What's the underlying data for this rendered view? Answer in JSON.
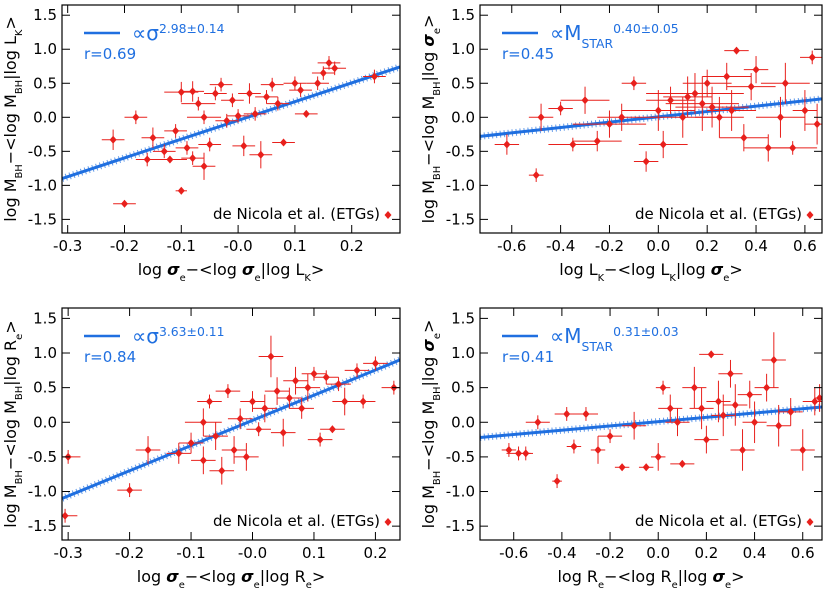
{
  "chart_data": [
    {
      "type": "scatter",
      "ylabel": [
        {
          "t": "log M"
        },
        {
          "t": "BH",
          "sub": true
        },
        {
          "t": "−<log M"
        },
        {
          "t": "BH",
          "sub": true
        },
        {
          "t": "|log L"
        },
        {
          "t": "K",
          "sub": true
        },
        {
          "t": ">"
        }
      ],
      "xlabel": [
        {
          "t": "log "
        },
        {
          "t": "σ",
          "bold": true
        },
        {
          "t": "e",
          "sub": true
        },
        {
          "t": "−<log "
        },
        {
          "t": "σ",
          "bold": true
        },
        {
          "t": "e",
          "sub": true
        },
        {
          "t": "|log L"
        },
        {
          "t": "K",
          "sub": true
        },
        {
          "t": ">"
        }
      ],
      "xlim": [
        -0.31,
        0.285
      ],
      "ylim": [
        -1.7,
        1.65
      ],
      "xticks": [
        -0.3,
        -0.2,
        -0.1,
        {
          "value": 0,
          "label": "-0.0"
        },
        0.1,
        0.2
      ],
      "yticks": [
        -1.5,
        {
          "value": -1,
          "label": "-1.0"
        },
        -0.5,
        {
          "value": 0,
          "label": "0.0"
        },
        0.5,
        {
          "value": 1,
          "label": "1.0"
        },
        1.5
      ],
      "fit": {
        "color": "#1f6fe0",
        "x": [
          -0.31,
          0.285
        ],
        "y": [
          -0.9,
          0.74
        ],
        "label": [
          {
            "t": "∝σ"
          },
          {
            "t": "2.98±0.14",
            "sup": true
          }
        ],
        "r": "r=0.69"
      },
      "series": [
        {
          "name": "de Nicola et al. (ETGs)",
          "color": "#e8201c",
          "x": [
            -0.22,
            -0.2,
            -0.18,
            -0.16,
            -0.15,
            -0.13,
            -0.12,
            -0.11,
            -0.1,
            -0.1,
            -0.09,
            -0.08,
            -0.08,
            -0.07,
            -0.06,
            -0.06,
            -0.05,
            -0.04,
            -0.03,
            -0.02,
            -0.01,
            0,
            0.01,
            0.02,
            0.03,
            0.04,
            0.05,
            0.06,
            0.07,
            0.08,
            0.1,
            0.11,
            0.12,
            0.14,
            0.15,
            0.16,
            0.17,
            0.24
          ],
          "y": [
            -0.33,
            -1.27,
            0,
            -0.62,
            -0.3,
            -0.5,
            -0.62,
            -0.2,
            0.37,
            -1.08,
            -0.45,
            -0.6,
            0.38,
            0.2,
            -0.72,
            0,
            -0.4,
            0.35,
            0.48,
            -0.05,
            0.25,
            0.02,
            -0.42,
            0.35,
            0.05,
            -0.55,
            0.3,
            0.48,
            0.2,
            -0.37,
            0.5,
            0.4,
            0.05,
            0.5,
            0.65,
            0.8,
            0.72,
            0.6
          ],
          "xerr": [
            0.02,
            0.02,
            0.02,
            0.02,
            0.02,
            0.02,
            0.03,
            0.02,
            0.03,
            0.01,
            0.02,
            0.02,
            0.02,
            0.03,
            0.02,
            0.03,
            0.02,
            0.02,
            0.02,
            0.02,
            0.02,
            0.02,
            0.02,
            0.02,
            0.02,
            0.02,
            0.02,
            0.02,
            0.02,
            0.02,
            0.02,
            0.02,
            0.02,
            0.02,
            0.02,
            0.02,
            0.02,
            0.02
          ],
          "yerr": [
            0.15,
            0.05,
            0.1,
            0.1,
            0.15,
            0.1,
            0.05,
            0.1,
            0.15,
            0.05,
            0.1,
            0.1,
            0.15,
            0.1,
            0.2,
            0.1,
            0.1,
            0.1,
            0.1,
            0.1,
            0.1,
            0.1,
            0.15,
            0.15,
            0.1,
            0.2,
            0.1,
            0.1,
            0.1,
            0.05,
            0.1,
            0.1,
            0.05,
            0.1,
            0.1,
            0.1,
            0.1,
            0.1
          ]
        }
      ]
    },
    {
      "type": "scatter",
      "ylabel": [
        {
          "t": "log M"
        },
        {
          "t": "BH",
          "sub": true
        },
        {
          "t": "−<log M"
        },
        {
          "t": "BH",
          "sub": true
        },
        {
          "t": "|log "
        },
        {
          "t": "σ",
          "bold": true
        },
        {
          "t": "e",
          "sub": true
        },
        {
          "t": ">"
        }
      ],
      "xlabel": [
        {
          "t": "log L"
        },
        {
          "t": "K",
          "sub": true
        },
        {
          "t": "−<log L"
        },
        {
          "t": "K",
          "sub": true
        },
        {
          "t": "|log "
        },
        {
          "t": "σ",
          "bold": true
        },
        {
          "t": "e",
          "sub": true
        },
        {
          "t": ">"
        }
      ],
      "xlim": [
        -0.73,
        0.67
      ],
      "ylim": [
        -1.7,
        1.65
      ],
      "xticks": [
        -0.6,
        -0.4,
        -0.2,
        {
          "value": 0,
          "label": "0.0"
        },
        0.2,
        0.4,
        0.6
      ],
      "yticks": [
        -1.5,
        {
          "value": -1,
          "label": "-1.0"
        },
        -0.5,
        {
          "value": 0,
          "label": "0.0"
        },
        0.5,
        {
          "value": 1,
          "label": "1.0"
        },
        1.5
      ],
      "fit": {
        "color": "#1f6fe0",
        "x": [
          -0.73,
          0.67
        ],
        "y": [
          -0.28,
          0.27
        ],
        "label": [
          {
            "t": "∝M"
          },
          {
            "t": "STAR",
            "sub": true
          },
          {
            "t": "0.40±0.05",
            "sup": true
          }
        ],
        "r": "r=0.45"
      },
      "series": [
        {
          "name": "de Nicola et al. (ETGs)",
          "color": "#e8201c",
          "x": [
            -0.62,
            -0.5,
            -0.48,
            -0.4,
            -0.35,
            -0.3,
            -0.25,
            -0.2,
            -0.15,
            -0.1,
            -0.05,
            0,
            0.02,
            0.05,
            0.1,
            0.12,
            0.15,
            0.18,
            0.2,
            0.22,
            0.25,
            0.28,
            0.3,
            0.32,
            0.35,
            0.38,
            0.4,
            0.45,
            0.5,
            0.52,
            0.55,
            0.6,
            0.63,
            0.65
          ],
          "y": [
            -0.4,
            -0.85,
            0,
            0.13,
            -0.4,
            0.25,
            -0.35,
            -0.1,
            0,
            0.5,
            -0.65,
            0.1,
            -0.4,
            0.25,
            0,
            0.3,
            0.35,
            0.2,
            0.5,
            0.15,
            0,
            0.6,
            0.1,
            0.98,
            -0.3,
            0.45,
            0.7,
            -0.45,
            0,
            0.5,
            -0.45,
            0.1,
            0.88,
            -0.1
          ],
          "xerr": [
            0.05,
            0.03,
            0.05,
            0.05,
            0.1,
            0.1,
            0.1,
            0.15,
            0.1,
            0.05,
            0.05,
            0.15,
            0.1,
            0.1,
            0.15,
            0.1,
            0.2,
            0.15,
            0.1,
            0.15,
            0.1,
            0.1,
            0.1,
            0.05,
            0.1,
            0.1,
            0.05,
            0.1,
            0.1,
            0.1,
            0.1,
            0.05,
            0.05,
            0.05
          ],
          "yerr": [
            0.15,
            0.1,
            0.2,
            0.1,
            0.1,
            0.2,
            0.15,
            0.2,
            0.2,
            0.1,
            0.15,
            0.3,
            0.2,
            0.2,
            0.3,
            0.3,
            0.3,
            0.4,
            0.2,
            0.3,
            0.3,
            0.2,
            0.3,
            0.05,
            0.2,
            0.2,
            0.2,
            0.2,
            0.3,
            0.3,
            0.1,
            0.3,
            0.1,
            0.3
          ]
        }
      ]
    },
    {
      "type": "scatter",
      "ylabel": [
        {
          "t": "log M"
        },
        {
          "t": "BH",
          "sub": true
        },
        {
          "t": "−<log M"
        },
        {
          "t": "BH",
          "sub": true
        },
        {
          "t": "|log R"
        },
        {
          "t": "e",
          "sub": true
        },
        {
          "t": ">"
        }
      ],
      "xlabel": [
        {
          "t": "log "
        },
        {
          "t": "σ",
          "bold": true
        },
        {
          "t": "e",
          "sub": true
        },
        {
          "t": "−<log "
        },
        {
          "t": "σ",
          "bold": true
        },
        {
          "t": "e",
          "sub": true
        },
        {
          "t": "|log R"
        },
        {
          "t": "e",
          "sub": true
        },
        {
          "t": ">"
        }
      ],
      "xlim": [
        -0.31,
        0.24
      ],
      "ylim": [
        -1.7,
        1.65
      ],
      "xticks": [
        -0.3,
        -0.2,
        -0.1,
        {
          "value": 0,
          "label": "-0.0"
        },
        0.1,
        0.2
      ],
      "yticks": [
        -1.5,
        {
          "value": -1,
          "label": "-1.0"
        },
        -0.5,
        {
          "value": 0,
          "label": "0.0"
        },
        0.5,
        {
          "value": 1,
          "label": "1.0"
        },
        1.5
      ],
      "fit": {
        "color": "#1f6fe0",
        "x": [
          -0.31,
          0.24
        ],
        "y": [
          -1.1,
          0.9
        ],
        "label": [
          {
            "t": "∝σ"
          },
          {
            "t": "3.63±0.11",
            "sup": true
          }
        ],
        "r": "r=0.84"
      },
      "series": [
        {
          "name": "de Nicola et al. (ETGs)",
          "color": "#e8201c",
          "x": [
            -0.3,
            -0.305,
            -0.2,
            -0.17,
            -0.12,
            -0.1,
            -0.08,
            -0.08,
            -0.07,
            -0.06,
            -0.05,
            -0.04,
            -0.03,
            -0.02,
            -0.01,
            0,
            0.01,
            0.02,
            0.03,
            0.04,
            0.05,
            0.06,
            0.07,
            0.08,
            0.09,
            0.1,
            0.11,
            0.12,
            0.13,
            0.14,
            0.15,
            0.17,
            0.18,
            0.2,
            0.23
          ],
          "y": [
            -0.5,
            -1.35,
            -0.98,
            -0.4,
            -0.45,
            -0.3,
            0,
            -0.55,
            0.3,
            -0.2,
            -0.7,
            0.45,
            -0.4,
            0.05,
            -0.5,
            0.3,
            -0.1,
            0.2,
            0.95,
            0.45,
            -0.15,
            0.35,
            0.6,
            0.2,
            0.5,
            0.7,
            -0.25,
            0.65,
            -0.1,
            0.55,
            0.3,
            0.75,
            0.3,
            0.85,
            0.5
          ],
          "xerr": [
            0.02,
            0.02,
            0.02,
            0.02,
            0.02,
            0.02,
            0.03,
            0.02,
            0.02,
            0.02,
            0.02,
            0.02,
            0.02,
            0.02,
            0.02,
            0.02,
            0.02,
            0.02,
            0.02,
            0.02,
            0.02,
            0.02,
            0.02,
            0.02,
            0.02,
            0.02,
            0.02,
            0.02,
            0.02,
            0.02,
            0.02,
            0.02,
            0.02,
            0.02,
            0.02
          ],
          "yerr": [
            0.1,
            0.1,
            0.1,
            0.2,
            0.15,
            0.15,
            0.2,
            0.2,
            0.1,
            0.2,
            0.2,
            0.1,
            0.2,
            0.15,
            0.2,
            0.15,
            0.1,
            0.2,
            0.3,
            0.2,
            0.2,
            0.15,
            0.2,
            0.15,
            0.2,
            0.1,
            0.1,
            0.1,
            0.05,
            0.1,
            0.2,
            0.1,
            0.1,
            0.1,
            0.1
          ]
        }
      ]
    },
    {
      "type": "scatter",
      "ylabel": [
        {
          "t": "log M"
        },
        {
          "t": "BH",
          "sub": true
        },
        {
          "t": "−<log M"
        },
        {
          "t": "BH",
          "sub": true
        },
        {
          "t": "|log "
        },
        {
          "t": "σ",
          "bold": true
        },
        {
          "t": "e",
          "sub": true
        },
        {
          "t": ">"
        }
      ],
      "xlabel": [
        {
          "t": "log R"
        },
        {
          "t": "e",
          "sub": true
        },
        {
          "t": "−<log R"
        },
        {
          "t": "e",
          "sub": true
        },
        {
          "t": "|log "
        },
        {
          "t": "σ",
          "bold": true
        },
        {
          "t": "e",
          "sub": true
        },
        {
          "t": ">"
        }
      ],
      "xlim": [
        -0.74,
        0.68
      ],
      "ylim": [
        -1.7,
        1.65
      ],
      "xticks": [
        -0.6,
        -0.4,
        -0.2,
        {
          "value": 0,
          "label": "0.0"
        },
        0.2,
        0.4,
        0.6
      ],
      "yticks": [
        -1.5,
        {
          "value": -1,
          "label": "-1.0"
        },
        -0.5,
        {
          "value": 0,
          "label": "0.0"
        },
        0.5,
        {
          "value": 1,
          "label": "1.0"
        },
        1.5
      ],
      "fit": {
        "color": "#1f6fe0",
        "x": [
          -0.74,
          0.68
        ],
        "y": [
          -0.22,
          0.22
        ],
        "label": [
          {
            "t": "∝M"
          },
          {
            "t": "STAR",
            "sub": true
          },
          {
            "t": "0.31±0.03",
            "sup": true
          }
        ],
        "r": "r=0.41"
      },
      "series": [
        {
          "name": "de Nicola et al. (ETGs)",
          "color": "#e8201c",
          "x": [
            -0.62,
            -0.58,
            -0.55,
            -0.5,
            -0.42,
            -0.38,
            -0.35,
            -0.3,
            -0.25,
            -0.2,
            -0.15,
            -0.1,
            -0.05,
            0,
            0.02,
            0.05,
            0.08,
            0.1,
            0.15,
            0.18,
            0.2,
            0.22,
            0.25,
            0.27,
            0.3,
            0.32,
            0.35,
            0.38,
            0.4,
            0.45,
            0.48,
            0.5,
            0.55,
            0.6,
            0.65,
            0.67
          ],
          "y": [
            -0.4,
            -0.45,
            -0.45,
            0,
            -0.85,
            0.12,
            -0.35,
            0.12,
            -0.4,
            -0.2,
            -0.65,
            -0.05,
            -0.65,
            -0.5,
            0.5,
            0.2,
            0,
            -0.6,
            0.5,
            0.2,
            -0.25,
            0.98,
            0.3,
            0.1,
            0.7,
            0.25,
            -0.4,
            0.4,
            0,
            0.5,
            0.9,
            -0.05,
            0.15,
            -0.4,
            0.3,
            0.35
          ],
          "xerr": [
            0.03,
            0.05,
            0.03,
            0.05,
            0.02,
            0.05,
            0.03,
            0.05,
            0.03,
            0.05,
            0.03,
            0.05,
            0.03,
            0.03,
            0.03,
            0.05,
            0.05,
            0.05,
            0.05,
            0.05,
            0.05,
            0.05,
            0.05,
            0.05,
            0.05,
            0.05,
            0.05,
            0.05,
            0.05,
            0.05,
            0.05,
            0.05,
            0.05,
            0.05,
            0.05,
            0.02
          ],
          "yerr": [
            0.1,
            0.1,
            0.1,
            0.1,
            0.1,
            0.1,
            0.1,
            0.1,
            0.2,
            0.1,
            0.05,
            0.2,
            0.05,
            0.2,
            0.1,
            0.2,
            0.2,
            0.05,
            0.3,
            0.3,
            0.2,
            0.05,
            0.3,
            0.3,
            0.2,
            0.3,
            0.3,
            0.2,
            0.3,
            0.2,
            0.4,
            0.3,
            0.2,
            0.3,
            0.2,
            0.2
          ]
        }
      ]
    }
  ]
}
